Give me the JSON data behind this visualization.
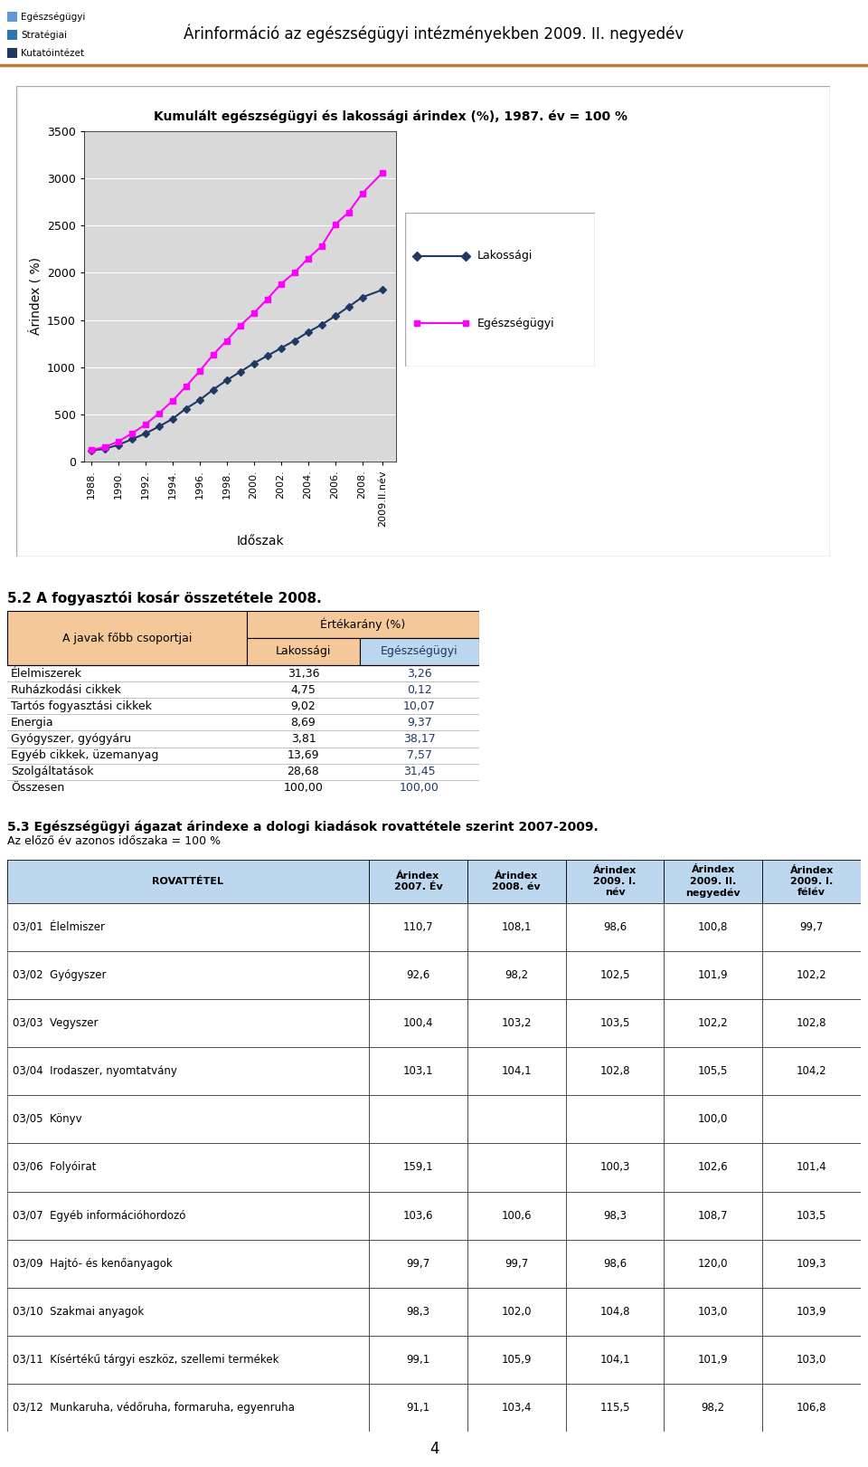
{
  "page_title": "Árinformáció az egészségügyi intézményekben 2009. II. negyedév",
  "chart_title": "Kumulált egészségügyi és lakossági árindex (%), 1987. év = 100 %",
  "ylabel": "Árindex ( %)",
  "xlabel": "Időszak",
  "x_labels": [
    "1988.",
    "1990.",
    "1992.",
    "1994.",
    "1996.",
    "1998.",
    "2000.",
    "2002.",
    "2004.",
    "2006.",
    "2008.",
    "2009.II.név"
  ],
  "lakossagi_data": [
    [
      1988,
      115
    ],
    [
      1989,
      135
    ],
    [
      1990,
      175
    ],
    [
      1991,
      235
    ],
    [
      1992,
      295
    ],
    [
      1993,
      370
    ],
    [
      1994,
      450
    ],
    [
      1995,
      560
    ],
    [
      1996,
      650
    ],
    [
      1997,
      760
    ],
    [
      1998,
      860
    ],
    [
      1999,
      950
    ],
    [
      2000,
      1040
    ],
    [
      2001,
      1120
    ],
    [
      2002,
      1200
    ],
    [
      2003,
      1280
    ],
    [
      2004,
      1370
    ],
    [
      2005,
      1450
    ],
    [
      2006,
      1540
    ],
    [
      2007,
      1640
    ],
    [
      2008,
      1740
    ],
    [
      2009.5,
      1820
    ]
  ],
  "egeszsegugyi_data": [
    [
      1988,
      120
    ],
    [
      1989,
      155
    ],
    [
      1990,
      210
    ],
    [
      1991,
      295
    ],
    [
      1992,
      390
    ],
    [
      1993,
      510
    ],
    [
      1994,
      640
    ],
    [
      1995,
      795
    ],
    [
      1996,
      955
    ],
    [
      1997,
      1130
    ],
    [
      1998,
      1280
    ],
    [
      1999,
      1440
    ],
    [
      2000,
      1570
    ],
    [
      2001,
      1720
    ],
    [
      2002,
      1880
    ],
    [
      2003,
      2000
    ],
    [
      2004,
      2150
    ],
    [
      2005,
      2280
    ],
    [
      2006,
      2510
    ],
    [
      2007,
      2640
    ],
    [
      2008,
      2840
    ],
    [
      2009.5,
      3060
    ]
  ],
  "legend_lakossagi": "Lakossági",
  "legend_egeszsegugyi": "Egészségügyi",
  "yticks": [
    0,
    500,
    1000,
    1500,
    2000,
    2500,
    3000,
    3500
  ],
  "section_title": "5.2 A fogyasztói kosár összetétele 2008.",
  "table_header_col1": "A javak főbb csoportjai",
  "table_header_ertekarany": "Értékarány (%)",
  "table_col2": "Lakossági",
  "table_col3": "Egészségügyi",
  "table_rows": [
    [
      "Élelmiszerek",
      "31,36",
      "3,26"
    ],
    [
      "Ruházkodási cikkek",
      "4,75",
      "0,12"
    ],
    [
      "Tartós fogyasztási cikkek",
      "9,02",
      "10,07"
    ],
    [
      "Energia",
      "8,69",
      "9,37"
    ],
    [
      "Gyógyszer, gyógyáru",
      "3,81",
      "38,17"
    ],
    [
      "Egyéb cikkek, üzemanyag",
      "13,69",
      "7,57"
    ],
    [
      "Szolgáltatások",
      "28,68",
      "31,45"
    ],
    [
      "Összesen",
      "100,00",
      "100,00"
    ]
  ],
  "section2_title": "5.3 Egészségügyi ágazat árindexe a dologi kiadások rovattétele szerint 2007-2009.",
  "section2_subtitle": "Az előző év azonos időszaka = 100 %",
  "table2_headers": [
    "ROVATTÉTEL",
    "Árindex\n2007. Év",
    "Árindex\n2008. év",
    "Árindex\n2009. I.\nnév",
    "Árindex\n2009. II.\nnegyedév",
    "Árindex\n2009. I.\nfélév"
  ],
  "table2_rows": [
    [
      "03/01  Élelmiszer",
      "110,7",
      "108,1",
      "98,6",
      "100,8",
      "99,7"
    ],
    [
      "03/02  Gyógyszer",
      "92,6",
      "98,2",
      "102,5",
      "101,9",
      "102,2"
    ],
    [
      "03/03  Vegyszer",
      "100,4",
      "103,2",
      "103,5",
      "102,2",
      "102,8"
    ],
    [
      "03/04  Irodaszer, nyomtatvány",
      "103,1",
      "104,1",
      "102,8",
      "105,5",
      "104,2"
    ],
    [
      "03/05  Könyv",
      "",
      "",
      "",
      "100,0",
      ""
    ],
    [
      "03/06  Folyóirat",
      "159,1",
      "",
      "100,3",
      "102,6",
      "101,4"
    ],
    [
      "03/07  Egyéb információhordozó",
      "103,6",
      "100,6",
      "98,3",
      "108,7",
      "103,5"
    ],
    [
      "03/09  Hajtó- és kenőanyagok",
      "99,7",
      "99,7",
      "98,6",
      "120,0",
      "109,3"
    ],
    [
      "03/10  Szakmai anyagok",
      "98,3",
      "102,0",
      "104,8",
      "103,0",
      "103,9"
    ],
    [
      "03/11  Kísértékű tárgyi eszköz, szellemi termékek",
      "99,1",
      "105,9",
      "104,1",
      "101,9",
      "103,0"
    ],
    [
      "03/12  Munkaruha, védőruha, formaruha, egyenruha",
      "91,1",
      "103,4",
      "115,5",
      "98,2",
      "106,8"
    ]
  ],
  "footer_page": "4",
  "header_logo_lines": [
    "Egészségügyi",
    "Stratégiai",
    "Kutatóintézet"
  ],
  "logo_colors": [
    "#4472C4",
    "#4472C4",
    "#1F3864"
  ],
  "table_bg_header": "#F5C89A",
  "table_bg_col3": "#BDD7EE",
  "table2_header_bg": "#BDD7EE",
  "orange_line_color": "#C0783C"
}
